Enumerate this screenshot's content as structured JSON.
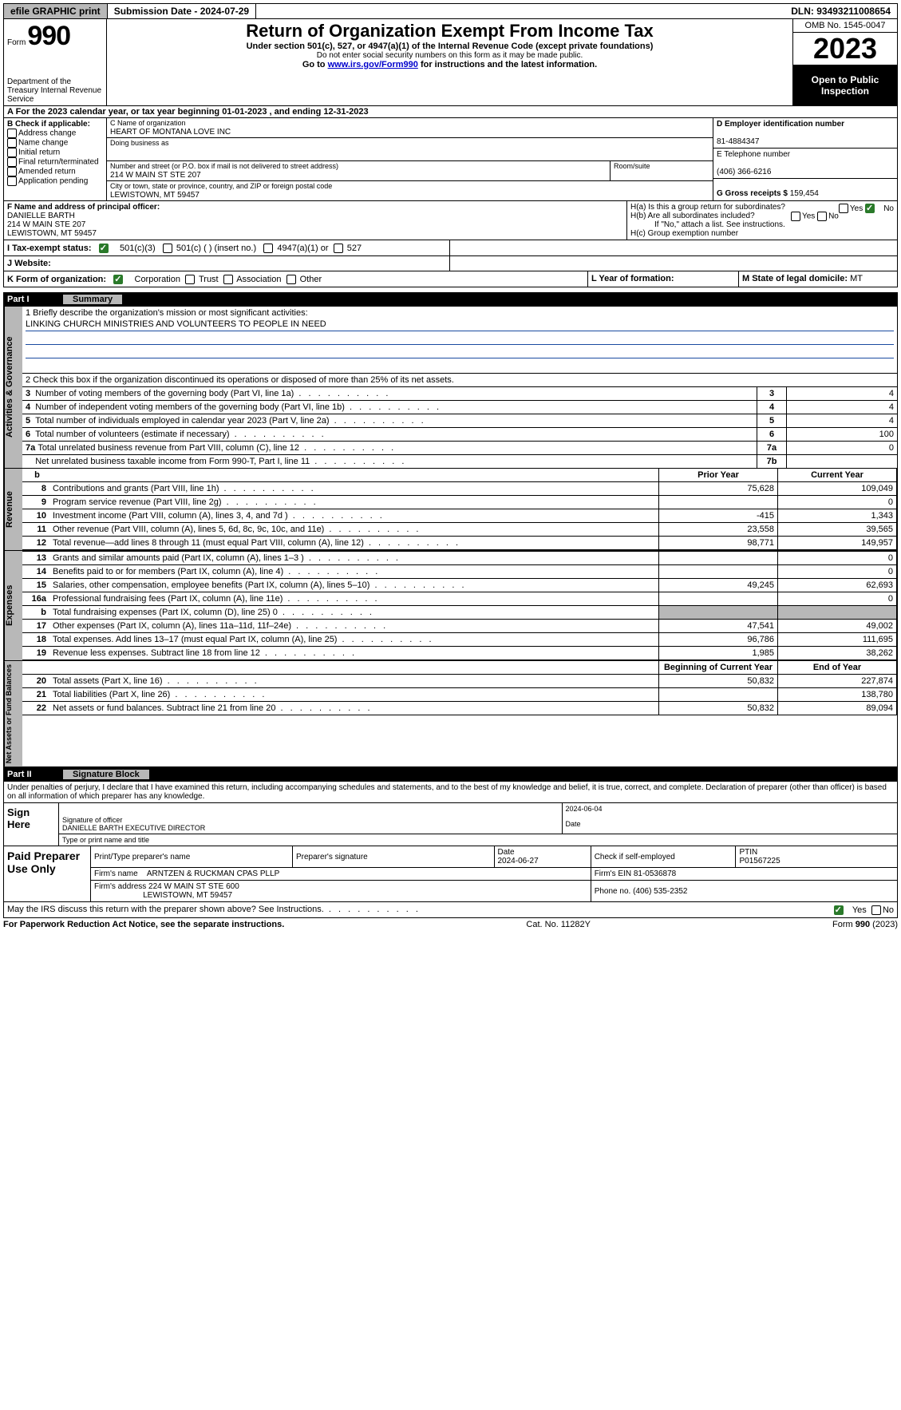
{
  "topbar": {
    "efile": "efile GRAPHIC print",
    "subdate_label": "Submission Date - ",
    "subdate": "2024-07-29",
    "dln_label": "DLN: ",
    "dln": "93493211008654"
  },
  "header": {
    "form_word": "Form",
    "form_num": "990",
    "dept": "Department of the Treasury\nInternal Revenue Service",
    "title": "Return of Organization Exempt From Income Tax",
    "sub1": "Under section 501(c), 527, or 4947(a)(1) of the Internal Revenue Code (except private foundations)",
    "sub2": "Do not enter social security numbers on this form as it may be made public.",
    "sub3_pre": "Go to ",
    "sub3_link": "www.irs.gov/Form990",
    "sub3_post": " for instructions and the latest information.",
    "omb": "OMB No. 1545-0047",
    "year": "2023",
    "inspection": "Open to Public Inspection"
  },
  "rowA": "A For the 2023 calendar year, or tax year beginning 01-01-2023   , and ending 12-31-2023",
  "boxB": {
    "hdr": "B Check if applicable:",
    "items": [
      "Address change",
      "Name change",
      "Initial return",
      "Final return/terminated",
      "Amended return",
      "Application pending"
    ]
  },
  "boxC": {
    "name_lbl": "C Name of organization",
    "name": "HEART OF MONTANA LOVE INC",
    "dba_lbl": "Doing business as",
    "dba": "",
    "street_lbl": "Number and street (or P.O. box if mail is not delivered to street address)",
    "street": "214 W MAIN ST STE 207",
    "room_lbl": "Room/suite",
    "city_lbl": "City or town, state or province, country, and ZIP or foreign postal code",
    "city": "LEWISTOWN, MT  59457"
  },
  "boxD": {
    "ein_lbl": "D Employer identification number",
    "ein": "81-4884347",
    "phone_lbl": "E Telephone number",
    "phone": "(406) 366-6216",
    "gross_lbl": "G Gross receipts $ ",
    "gross": "159,454"
  },
  "boxF": {
    "lbl": "F  Name and address of principal officer:",
    "name": "DANIELLE BARTH",
    "addr1": "214 W MAIN STE 207",
    "addr2": "LEWISTOWN, MT  59457"
  },
  "boxH": {
    "ha": "H(a)  Is this a group return for subordinates?",
    "hb": "H(b)  Are all subordinates included?",
    "hb_note": "If \"No,\" attach a list. See instructions.",
    "hc": "H(c)  Group exemption number"
  },
  "rowI": {
    "lbl": "I   Tax-exempt status:",
    "o1": "501(c)(3)",
    "o2": "501(c) (  ) (insert no.)",
    "o3": "4947(a)(1) or",
    "o4": "527"
  },
  "rowJ": {
    "lbl": "J   Website:"
  },
  "rowK": {
    "lbl": "K Form of organization:",
    "o1": "Corporation",
    "o2": "Trust",
    "o3": "Association",
    "o4": "Other",
    "l_lbl": "L Year of formation:",
    "m_lbl": "M State of legal domicile: ",
    "m_val": "MT"
  },
  "part1": {
    "num": "Part I",
    "title": "Summary"
  },
  "mission": {
    "q1_lbl": "1   Briefly describe the organization's mission or most significant activities:",
    "q1_val": "LINKING CHURCH MINISTRIES AND VOLUNTEERS TO PEOPLE IN NEED",
    "q2": "2   Check this box       if the organization discontinued its operations or disposed of more than 25% of its net assets."
  },
  "govern": [
    {
      "n": "3",
      "t": "Number of voting members of the governing body (Part VI, line 1a)",
      "k": "3",
      "v": "4"
    },
    {
      "n": "4",
      "t": "Number of independent voting members of the governing body (Part VI, line 1b)",
      "k": "4",
      "v": "4"
    },
    {
      "n": "5",
      "t": "Total number of individuals employed in calendar year 2023 (Part V, line 2a)",
      "k": "5",
      "v": "4"
    },
    {
      "n": "6",
      "t": "Total number of volunteers (estimate if necessary)",
      "k": "6",
      "v": "100"
    },
    {
      "n": "7a",
      "t": "Total unrelated business revenue from Part VIII, column (C), line 12",
      "k": "7a",
      "v": "0"
    },
    {
      "n": "",
      "t": "Net unrelated business taxable income from Form 990-T, Part I, line 11",
      "k": "7b",
      "v": ""
    }
  ],
  "revenue": {
    "label": "Revenue",
    "hdr_prior": "Prior Year",
    "hdr_curr": "Current Year",
    "rows": [
      {
        "n": "8",
        "t": "Contributions and grants (Part VIII, line 1h)",
        "p": "75,628",
        "c": "109,049"
      },
      {
        "n": "9",
        "t": "Program service revenue (Part VIII, line 2g)",
        "p": "",
        "c": "0"
      },
      {
        "n": "10",
        "t": "Investment income (Part VIII, column (A), lines 3, 4, and 7d )",
        "p": "-415",
        "c": "1,343"
      },
      {
        "n": "11",
        "t": "Other revenue (Part VIII, column (A), lines 5, 6d, 8c, 9c, 10c, and 11e)",
        "p": "23,558",
        "c": "39,565"
      },
      {
        "n": "12",
        "t": "Total revenue—add lines 8 through 11 (must equal Part VIII, column (A), line 12)",
        "p": "98,771",
        "c": "149,957"
      }
    ]
  },
  "expenses": {
    "label": "Expenses",
    "rows": [
      {
        "n": "13",
        "t": "Grants and similar amounts paid (Part IX, column (A), lines 1–3 )",
        "p": "",
        "c": "0"
      },
      {
        "n": "14",
        "t": "Benefits paid to or for members (Part IX, column (A), line 4)",
        "p": "",
        "c": "0"
      },
      {
        "n": "15",
        "t": "Salaries, other compensation, employee benefits (Part IX, column (A), lines 5–10)",
        "p": "49,245",
        "c": "62,693"
      },
      {
        "n": "16a",
        "t": "Professional fundraising fees (Part IX, column (A), line 11e)",
        "p": "",
        "c": "0"
      },
      {
        "n": "b",
        "t": "Total fundraising expenses (Part IX, column (D), line 25) 0",
        "p": "SHADED",
        "c": "SHADED"
      },
      {
        "n": "17",
        "t": "Other expenses (Part IX, column (A), lines 11a–11d, 11f–24e)",
        "p": "47,541",
        "c": "49,002"
      },
      {
        "n": "18",
        "t": "Total expenses. Add lines 13–17 (must equal Part IX, column (A), line 25)",
        "p": "96,786",
        "c": "111,695"
      },
      {
        "n": "19",
        "t": "Revenue less expenses. Subtract line 18 from line 12",
        "p": "1,985",
        "c": "38,262"
      }
    ]
  },
  "netassets": {
    "label": "Net Assets or Fund Balances",
    "hdr_prior": "Beginning of Current Year",
    "hdr_curr": "End of Year",
    "rows": [
      {
        "n": "20",
        "t": "Total assets (Part X, line 16)",
        "p": "50,832",
        "c": "227,874"
      },
      {
        "n": "21",
        "t": "Total liabilities (Part X, line 26)",
        "p": "",
        "c": "138,780"
      },
      {
        "n": "22",
        "t": "Net assets or fund balances. Subtract line 21 from line 20",
        "p": "50,832",
        "c": "89,094"
      }
    ]
  },
  "part2": {
    "num": "Part II",
    "title": "Signature Block"
  },
  "sig": {
    "declaration": "Under penalties of perjury, I declare that I have examined this return, including accompanying schedules and statements, and to the best of my knowledge and belief, it is true, correct, and complete. Declaration of preparer (other than officer) is based on all information of which preparer has any knowledge.",
    "sign_here": "Sign Here",
    "sig_lbl": "Signature of officer",
    "date_lbl": "Date",
    "date": "2024-06-04",
    "officer": "DANIELLE BARTH  EXECUTIVE DIRECTOR",
    "type_lbl": "Type or print name and title"
  },
  "prep": {
    "title": "Paid Preparer Use Only",
    "name_lbl": "Print/Type preparer's name",
    "sig_lbl": "Preparer's signature",
    "date_lbl": "Date",
    "date": "2024-06-27",
    "self_lbl": "Check        if self-employed",
    "ptin_lbl": "PTIN",
    "ptin": "P01567225",
    "firm_lbl": "Firm's name   ",
    "firm": "ARNTZEN & RUCKMAN CPAS PLLP",
    "firm_ein_lbl": "Firm's EIN  ",
    "firm_ein": "81-0536878",
    "addr_lbl": "Firm's address ",
    "addr1": "224 W MAIN ST STE 600",
    "addr2": "LEWISTOWN, MT  59457",
    "phone_lbl": "Phone no. ",
    "phone": "(406) 535-2352"
  },
  "irs_discuss": "May the IRS discuss this return with the preparer shown above? See Instructions.",
  "footer": {
    "left": "For Paperwork Reduction Act Notice, see the separate instructions.",
    "mid": "Cat. No. 11282Y",
    "right_pre": "Form ",
    "right_form": "990",
    "right_post": " (2023)"
  },
  "lbl": {
    "yes": "Yes",
    "no": "No"
  }
}
